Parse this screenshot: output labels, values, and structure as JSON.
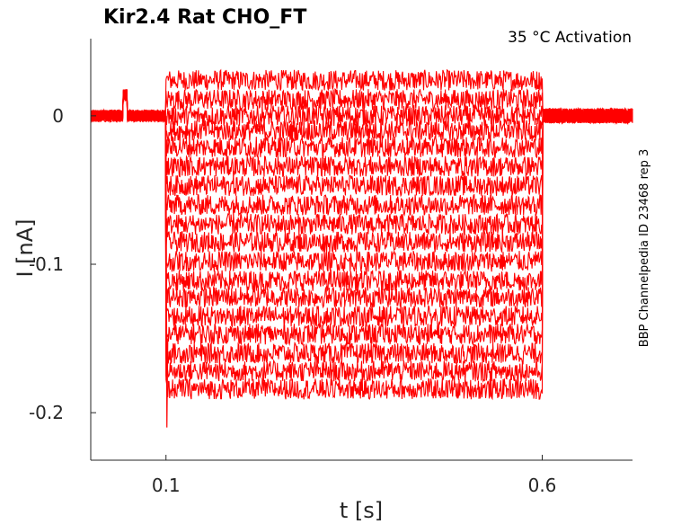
{
  "chart_data": {
    "type": "line",
    "title": "Kir2.4  Rat  CHO_FT",
    "annotation": "35 °C  Activation",
    "side_label": "BBP Channelpedia ID 23468 rep 3",
    "xlabel": "t [s]",
    "ylabel": "I [nA]",
    "xlim": [
      0.0,
      0.72
    ],
    "ylim": [
      -0.232,
      0.052
    ],
    "xticks": [
      {
        "value": 0.1,
        "label": "0.1"
      },
      {
        "value": 0.6,
        "label": "0.6"
      }
    ],
    "yticks": [
      {
        "value": 0,
        "label": "0"
      },
      {
        "value": -0.1,
        "label": "-0.1"
      },
      {
        "value": -0.2,
        "label": "-0.2"
      }
    ],
    "grid": false,
    "line_color": "#ff0000",
    "step_start": 0.1,
    "step_end": 0.6,
    "baseline_current": 0.0,
    "series": [
      {
        "levels": 0.024
      },
      {
        "levels": 0.011
      },
      {
        "levels": 0.0
      },
      {
        "levels": -0.01
      },
      {
        "levels": -0.021
      },
      {
        "levels": -0.034
      },
      {
        "levels": -0.047
      },
      {
        "levels": -0.06
      },
      {
        "levels": -0.073
      },
      {
        "levels": -0.085
      },
      {
        "levels": -0.098
      },
      {
        "levels": -0.111
      },
      {
        "levels": -0.122
      },
      {
        "levels": -0.135
      },
      {
        "levels": -0.147
      },
      {
        "levels": -0.16
      },
      {
        "levels": -0.172
      },
      {
        "levels": -0.184
      }
    ]
  }
}
